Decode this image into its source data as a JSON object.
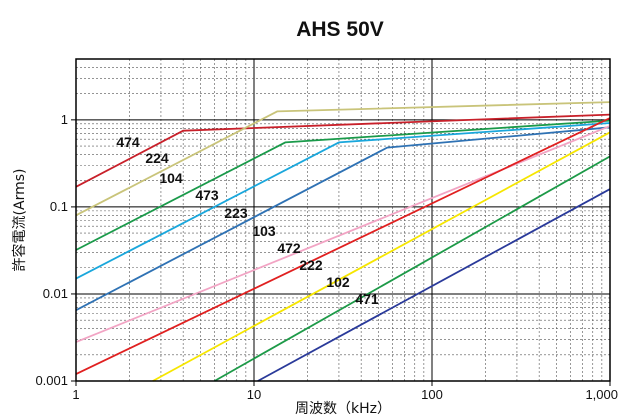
{
  "chart_data": {
    "type": "line",
    "title": "AHS 50V",
    "xlabel": "周波数（kHz）",
    "ylabel": "許容電流(Arms)",
    "x_scale": "log",
    "y_scale": "log",
    "xlim": [
      1,
      1000
    ],
    "ylim": [
      0.001,
      5
    ],
    "grid": true,
    "x_ticks": [
      "1",
      "10",
      "100",
      "1,000"
    ],
    "y_ticks": [
      "0.001",
      "0.01",
      "0.1",
      "1"
    ],
    "series": [
      {
        "name": "474",
        "color": "#c8202a",
        "x": [
          1,
          4,
          1000
        ],
        "y": [
          0.17,
          0.75,
          1.15
        ]
      },
      {
        "name": "224",
        "color": "#c9c47a",
        "x": [
          1,
          13.5,
          1000
        ],
        "y": [
          0.08,
          1.25,
          1.6
        ]
      },
      {
        "name": "104",
        "color": "#1a9a4a",
        "x": [
          1,
          15,
          1000
        ],
        "y": [
          0.032,
          0.55,
          0.98
        ]
      },
      {
        "name": "473",
        "color": "#1aa7dc",
        "x": [
          1,
          30,
          1000
        ],
        "y": [
          0.015,
          0.55,
          0.92
        ]
      },
      {
        "name": "223",
        "color": "#2f72b4",
        "x": [
          1,
          56,
          1000
        ],
        "y": [
          0.0065,
          0.48,
          0.82
        ]
      },
      {
        "name": "103",
        "color": "#f2a4c4",
        "x": [
          1,
          1000
        ],
        "y": [
          0.0028,
          0.85
        ]
      },
      {
        "name": "472",
        "color": "#e02020",
        "x": [
          1,
          1000
        ],
        "y": [
          0.0012,
          1.05
        ]
      },
      {
        "name": "222",
        "color": "#f6e600",
        "x": [
          2.7,
          1000
        ],
        "y": [
          0.001,
          0.72
        ]
      },
      {
        "name": "102",
        "color": "#1d9a48",
        "x": [
          6,
          1000
        ],
        "y": [
          0.001,
          0.38
        ]
      },
      {
        "name": "471",
        "color": "#2a3a9a",
        "x": [
          10.5,
          1000
        ],
        "y": [
          0.001,
          0.16
        ]
      }
    ]
  }
}
